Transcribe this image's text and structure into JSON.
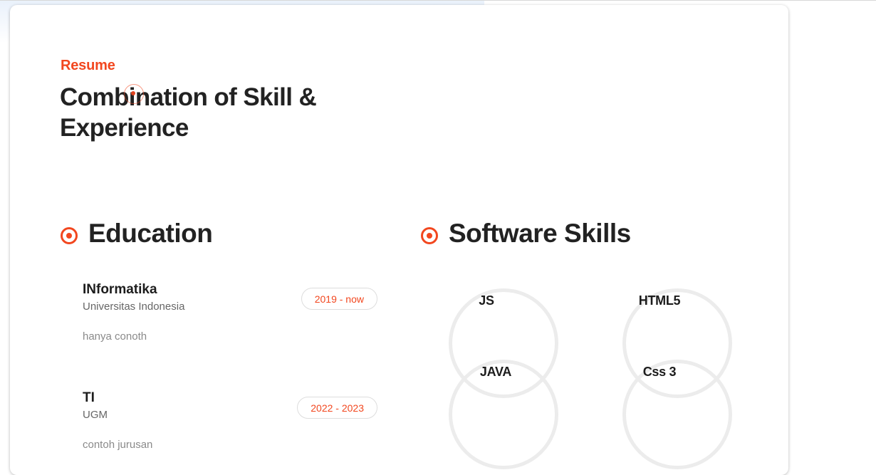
{
  "resume": {
    "eyebrow": "Resume",
    "headline": "Combination of Skill & Experience"
  },
  "education": {
    "title": "Education",
    "icon": "target-icon",
    "accent_color": "#f2471f",
    "items": [
      {
        "name": "INformatika",
        "school": "Universitas Indonesia",
        "description": "hanya conoth",
        "period": "2019 - now"
      },
      {
        "name": "TI",
        "school": "UGM",
        "description": "contoh jurusan",
        "period": "2022 - 2023"
      }
    ]
  },
  "software_skills": {
    "title": "Software Skills",
    "icon": "target-icon",
    "items": [
      {
        "name": "JS"
      },
      {
        "name": "HTML5"
      },
      {
        "name": "JAVA"
      },
      {
        "name": "Css 3"
      }
    ]
  }
}
